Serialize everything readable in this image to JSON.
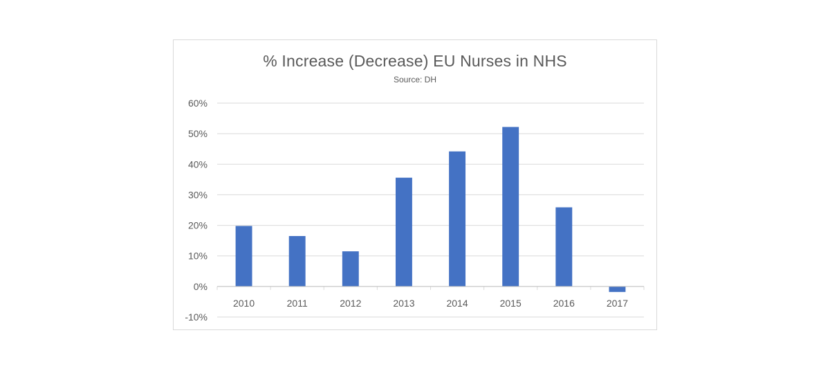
{
  "chart_data": {
    "type": "bar",
    "title": "% Increase (Decrease) EU Nurses in NHS",
    "subtitle": "Source: DH",
    "xlabel": "",
    "ylabel": "",
    "categories": [
      "2010",
      "2011",
      "2012",
      "2013",
      "2014",
      "2015",
      "2016",
      "2017"
    ],
    "values": [
      19.8,
      16.5,
      11.5,
      35.6,
      44.2,
      52.2,
      25.9,
      -1.8
    ],
    "ylim": [
      -10,
      60
    ],
    "yticks": [
      "-10%",
      "0%",
      "10%",
      "20%",
      "30%",
      "40%",
      "50%",
      "60%"
    ],
    "grid": true,
    "legend": "none",
    "bar_color": "#4472c4",
    "grid_color": "#d9d9d9"
  }
}
